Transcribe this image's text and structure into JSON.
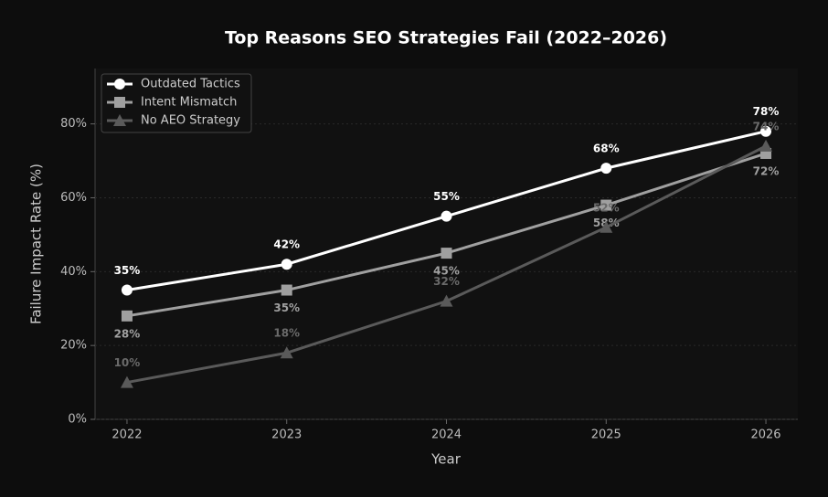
{
  "chart_data": {
    "type": "line",
    "title": "Top Reasons SEO Strategies Fail (2022–2026)",
    "x_label": "Year",
    "y_label": "Failure Impact Rate (%)",
    "x": [
      2022,
      2023,
      2024,
      2025,
      2026
    ],
    "series": [
      {
        "name": "Outdated Tactics",
        "color": "#ffffff",
        "marker": "circle",
        "label_position": "above",
        "values": [
          35,
          42,
          55,
          68,
          78
        ],
        "value_labels": [
          "35%",
          "42%",
          "55%",
          "68%",
          "78%"
        ]
      },
      {
        "name": "Intent Mismatch",
        "color": "#a0a0a0",
        "marker": "square",
        "label_position": "below",
        "values": [
          28,
          35,
          45,
          58,
          72
        ],
        "value_labels": [
          "28%",
          "35%",
          "45%",
          "58%",
          "72%"
        ]
      },
      {
        "name": "No AEO Strategy",
        "color": "#5a5a5a",
        "marker": "triangle",
        "label_position": "above",
        "values": [
          10,
          18,
          32,
          52,
          74
        ],
        "value_labels": [
          "10%",
          "18%",
          "32%",
          "52%",
          "74%"
        ]
      }
    ],
    "xlim": [
      2021.8,
      2026.2
    ],
    "xticks": [
      2022,
      2023,
      2024,
      2025,
      2026
    ],
    "ylim": [
      0,
      95
    ],
    "yticks": [
      {
        "value": 0,
        "label": "0%"
      },
      {
        "value": 20,
        "label": "20%"
      },
      {
        "value": 40,
        "label": "40%"
      },
      {
        "value": 60,
        "label": "60%"
      },
      {
        "value": 80,
        "label": "80%"
      }
    ],
    "grid": true,
    "legend": "upper left"
  }
}
